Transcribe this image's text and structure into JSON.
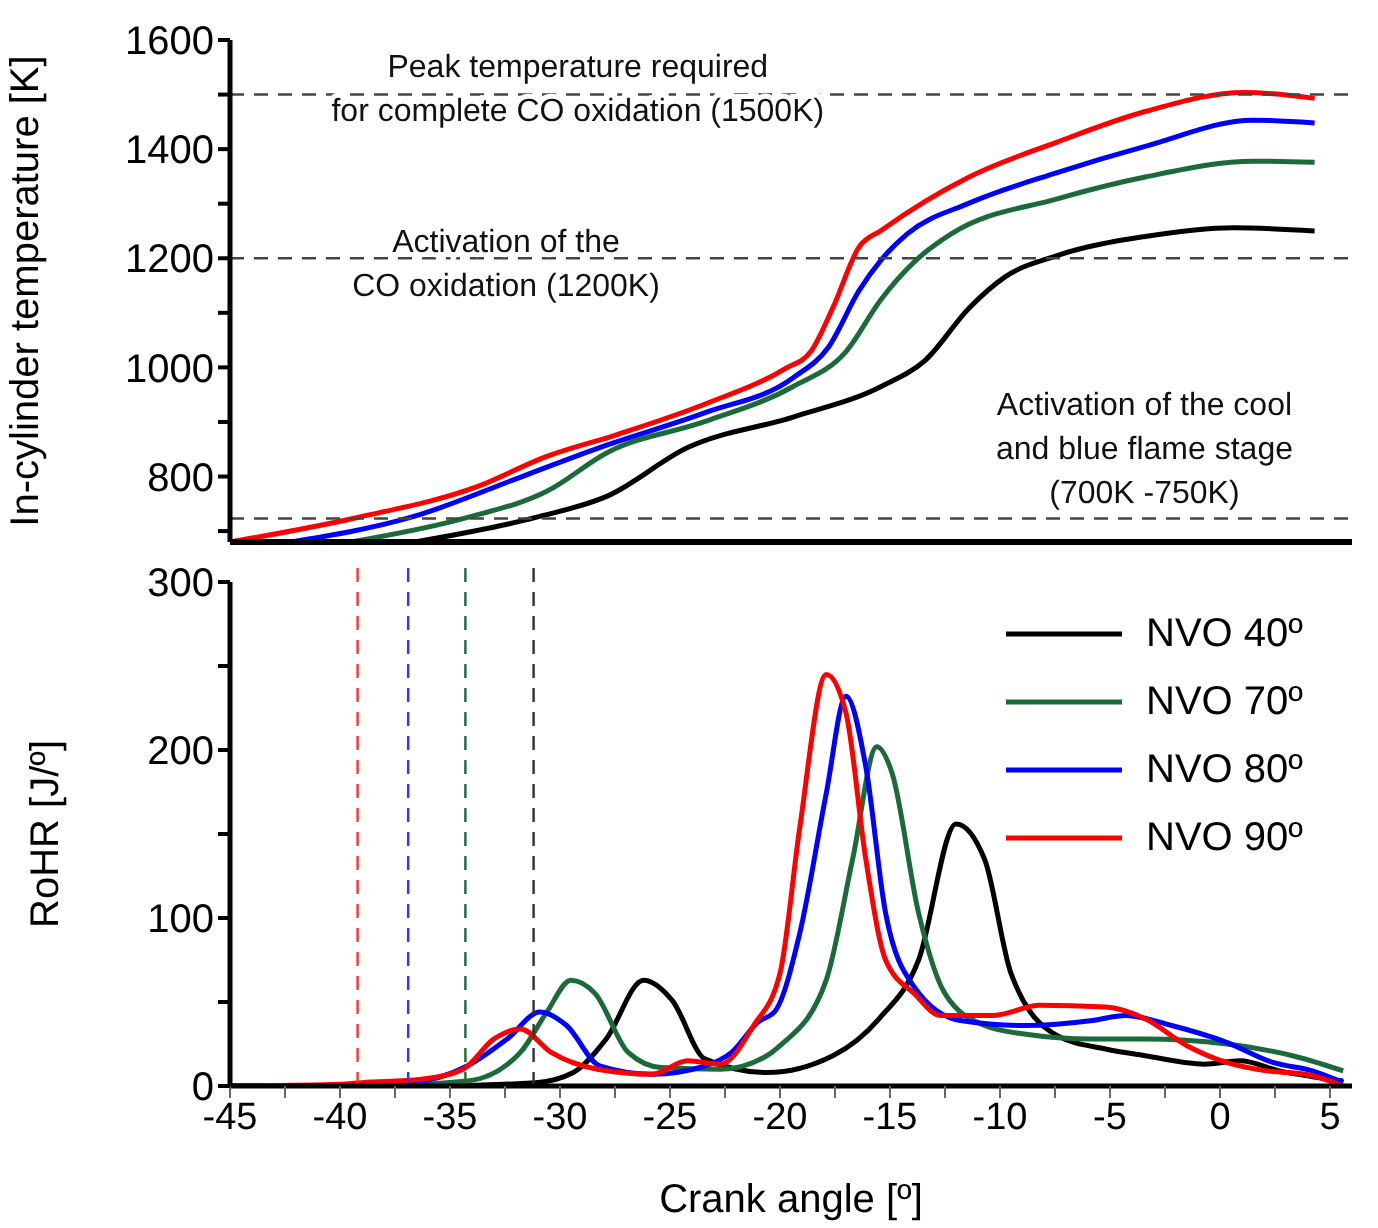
{
  "chart_data": [
    {
      "type": "line",
      "ylabel": "In-cylinder temperature [K]",
      "xlim": [
        -45,
        6
      ],
      "ylim": [
        680,
        1600
      ],
      "yticks": [
        {
          "value": 700,
          "label": null
        },
        800,
        {
          "value": 900,
          "label": null
        },
        1000,
        {
          "value": 1100,
          "label": null
        },
        1200,
        {
          "value": 1300,
          "label": null
        },
        1400,
        {
          "value": 1500,
          "label": null
        },
        1600
      ],
      "tick_labels": "y",
      "marker": "none",
      "line_style": "solid",
      "series": [
        {
          "color": "#000000",
          "x": [
            -36.6,
            -31.1,
            -27.8,
            -24.2,
            -19.4,
            -15.4,
            -13.4,
            -11.4,
            -9.8,
            -7.4,
            -3.4,
            0.6,
            4.3
          ],
          "values": [
            680,
            725,
            765,
            853,
            909,
            965,
            1013,
            1109,
            1165,
            1205,
            1240,
            1256,
            1250
          ]
        },
        {
          "color": "#1b6b3a",
          "x": [
            -39.5,
            -34.2,
            -30.6,
            -27.8,
            -23.4,
            -19.4,
            -17,
            -15.4,
            -13.8,
            -12.2,
            -7.4,
            -3.4,
            1.5,
            4.3
          ],
          "values": [
            680,
            725,
            773,
            845,
            901,
            965,
            1029,
            1125,
            1197,
            1245,
            1309,
            1349,
            1378,
            1376
          ]
        },
        {
          "color": "#0000ff",
          "x": [
            -42.2,
            -36.8,
            -31.4,
            -28.2,
            -23.4,
            -19.4,
            -17.8,
            -16.4,
            -15.4,
            -14.2,
            -11.4,
            -7.4,
            -3.4,
            1.5,
            4.3
          ],
          "values": [
            680,
            725,
            805,
            853,
            917,
            981,
            1037,
            1141,
            1197,
            1245,
            1301,
            1357,
            1405,
            1453,
            1448
          ]
        },
        {
          "color": "#ff0000",
          "x": [
            -45,
            -39.2,
            -33.8,
            -30.6,
            -27.4,
            -23.4,
            -19.8,
            -18.6,
            -17.6,
            -16.4,
            -15.4,
            -11.4,
            -7.4,
            -3.4,
            1.1,
            4.3
          ],
          "values": [
            680,
            725,
            781,
            837,
            877,
            933,
            997,
            1029,
            1109,
            1221,
            1251,
            1349,
            1413,
            1469,
            1504,
            1493
          ]
        }
      ],
      "ref_lines": [
        {
          "axis": "y",
          "value": 1500,
          "label": "Peak temperature required\nfor complete CO oxidation (1500K)",
          "color": "#444444",
          "line_style": "dashed"
        },
        {
          "axis": "y",
          "value": 1200,
          "label": "Activation of the\nCO oxidation (1200K)",
          "color": "#444444",
          "line_style": "dashed"
        },
        {
          "axis": "y",
          "value": 723,
          "label": "Activation of the cool\nand blue flame stage\n(700K -750K)",
          "color": "#444444",
          "line_style": "dashed"
        }
      ]
    },
    {
      "type": "line",
      "xlabel": "Crank angle [º]",
      "ylabel": "RoHR [J/º]",
      "xlim": [
        -45,
        6
      ],
      "ylim": [
        0,
        300
      ],
      "xticks": [
        -45,
        {
          "value": -42.5,
          "label": null
        },
        -40,
        {
          "value": -37.5,
          "label": null
        },
        -35,
        {
          "value": -32.5,
          "label": null
        },
        -30,
        {
          "value": -27.5,
          "label": null
        },
        -25,
        {
          "value": -22.5,
          "label": null
        },
        -20,
        {
          "value": -17.5,
          "label": null
        },
        -15,
        {
          "value": -12.5,
          "label": null
        },
        -10,
        {
          "value": -7.5,
          "label": null
        },
        -5,
        {
          "value": -2.5,
          "label": null
        },
        0,
        {
          "value": 2.5,
          "label": null
        },
        5
      ],
      "yticks": [
        0,
        {
          "value": 50,
          "label": null
        },
        100,
        {
          "value": 150,
          "label": null
        },
        200,
        {
          "value": 250,
          "label": null
        },
        300
      ],
      "legend": "top right",
      "marker": "none",
      "line_style": "solid",
      "series": [
        {
          "name": "NVO 40º",
          "color": "#000000",
          "x": [
            -45,
            -36,
            -31.1,
            -29.4,
            -27.9,
            -26.2,
            -24.9,
            -23.4,
            -20.6,
            -17.6,
            -15.5,
            -13.7,
            -12,
            -10.7,
            -9.5,
            -7.4,
            -5.2,
            -3.4,
            -0.7,
            0.9,
            2.7,
            5.6
          ],
          "values": [
            0,
            0,
            2,
            8,
            28,
            63,
            51,
            16,
            8,
            18,
            40,
            75,
            156,
            135,
            67,
            30,
            22,
            18,
            13,
            15,
            9,
            3
          ]
        },
        {
          "name": "NVO 70º",
          "color": "#1b6b3a",
          "x": [
            -45,
            -39,
            -34.2,
            -31.8,
            -30.6,
            -29.5,
            -28.4,
            -26.9,
            -25.4,
            -22.7,
            -20.6,
            -20,
            -17.9,
            -16.7,
            -15.6,
            -14.9,
            -13.7,
            -12.5,
            -10.7,
            -8.9,
            -5.8,
            -3.4,
            0.3,
            3.3,
            5.6
          ],
          "values": [
            0,
            0,
            3,
            20,
            44,
            63,
            55,
            20,
            11,
            10,
            18,
            24,
            63,
            135,
            202,
            186,
            103,
            55,
            36,
            31,
            28,
            28,
            25,
            18,
            9
          ]
        },
        {
          "name": "NVO 80º",
          "color": "#0000ff",
          "x": [
            -45,
            -41,
            -36.8,
            -34.2,
            -32.4,
            -30.9,
            -29.7,
            -28.2,
            -25.8,
            -23.4,
            -22.2,
            -21,
            -20.2,
            -19.1,
            -17.9,
            -17,
            -16.1,
            -15.2,
            -13.9,
            -11.8,
            -8.8,
            -5.8,
            -4.3,
            -2.2,
            0.3,
            2.4,
            4.2,
            5.6
          ],
          "values": [
            0,
            0,
            2,
            12,
            28,
            44,
            36,
            12,
            7,
            12,
            20,
            38,
            45,
            91,
            174,
            232,
            190,
            103,
            59,
            39,
            36,
            39,
            42,
            36,
            26,
            14,
            9,
            2
          ]
        },
        {
          "name": "NVO 90º",
          "color": "#ff0000",
          "x": [
            -45,
            -40,
            -39,
            -36.3,
            -34.4,
            -33,
            -31.8,
            -30.4,
            -28.3,
            -25.8,
            -24.2,
            -22.7,
            -21.2,
            -20,
            -19.1,
            -17.9,
            -17,
            -16.1,
            -15.2,
            -13.9,
            -12.7,
            -10.3,
            -8.2,
            -5.2,
            -3.4,
            -1.5,
            0.3,
            2.1,
            3.9,
            5.6
          ],
          "values": [
            0,
            1,
            2,
            4,
            10,
            28,
            34,
            20,
            10,
            7,
            15,
            13,
            36,
            67,
            154,
            245,
            222,
            135,
            75,
            55,
            42,
            42,
            48,
            47,
            40,
            24,
            14,
            9,
            7,
            0
          ]
        }
      ],
      "ref_lines": [
        {
          "axis": "x",
          "value": -39.2,
          "color": "#ff3333",
          "line_style": "dashed"
        },
        {
          "axis": "x",
          "value": -36.9,
          "color": "#3333ff",
          "line_style": "dashed"
        },
        {
          "axis": "x",
          "value": -34.3,
          "color": "#1b6b3a",
          "line_style": "dashed"
        },
        {
          "axis": "x",
          "value": -31.2,
          "color": "#333333",
          "line_style": "dashed"
        }
      ]
    }
  ]
}
